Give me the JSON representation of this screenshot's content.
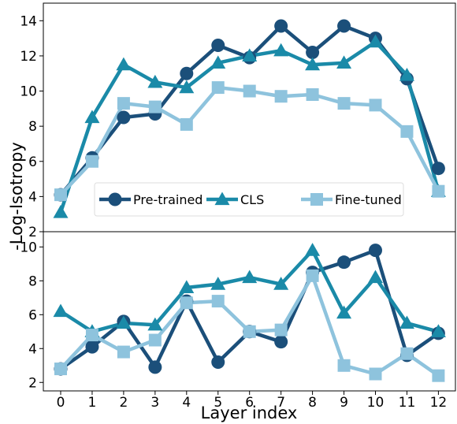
{
  "chart_data": [
    {
      "type": "line",
      "panel": "top",
      "x": [
        0,
        1,
        2,
        3,
        4,
        5,
        6,
        7,
        8,
        9,
        10,
        11,
        12
      ],
      "ylim": [
        2,
        15
      ],
      "yticks": [
        "2",
        "4",
        "6",
        "8",
        "10",
        "12",
        "14"
      ],
      "grid": false,
      "legend": "center",
      "series": [
        {
          "name": "Pre-trained",
          "color": "#1b4f7a",
          "marker": "circle",
          "values": [
            4.1,
            6.2,
            8.5,
            8.7,
            11.0,
            12.6,
            11.9,
            13.7,
            12.2,
            13.7,
            13.0,
            10.7,
            5.6
          ]
        },
        {
          "name": "CLS",
          "color": "#1a8aa8",
          "marker": "triangle",
          "values": [
            3.1,
            8.5,
            11.5,
            10.5,
            10.2,
            11.6,
            12.0,
            12.3,
            11.5,
            11.6,
            12.8,
            10.9,
            4.3
          ]
        },
        {
          "name": "Fine-tuned",
          "color": "#8ec3dd",
          "marker": "square",
          "values": [
            4.1,
            6.0,
            9.3,
            9.1,
            8.1,
            10.2,
            10.0,
            9.7,
            9.8,
            9.3,
            9.2,
            7.7,
            4.3
          ]
        }
      ]
    },
    {
      "type": "line",
      "panel": "bottom",
      "x": [
        0,
        1,
        2,
        3,
        4,
        5,
        6,
        7,
        8,
        9,
        10,
        11,
        12
      ],
      "ylim": [
        1.5,
        10.9
      ],
      "yticks": [
        "2",
        "4",
        "6",
        "8",
        "10"
      ],
      "grid": false,
      "series": [
        {
          "name": "Pre-trained",
          "color": "#1b4f7a",
          "marker": "circle",
          "values": [
            2.8,
            4.1,
            5.6,
            2.9,
            6.8,
            3.2,
            5.0,
            4.4,
            8.5,
            9.1,
            9.8,
            3.6,
            4.9
          ]
        },
        {
          "name": "CLS",
          "color": "#1a8aa8",
          "marker": "triangle",
          "values": [
            6.2,
            5.0,
            5.5,
            5.4,
            7.6,
            7.8,
            8.2,
            7.8,
            9.8,
            6.1,
            8.2,
            5.5,
            5.0
          ]
        },
        {
          "name": "Fine-tuned",
          "color": "#8ec3dd",
          "marker": "square",
          "values": [
            2.8,
            4.8,
            3.8,
            4.5,
            6.7,
            6.8,
            5.0,
            5.1,
            8.3,
            3.0,
            2.5,
            3.7,
            2.4
          ]
        }
      ]
    }
  ],
  "axes": {
    "xlabel": "Layer index",
    "ylabel": "-Log-Isotropy",
    "xticks": [
      "0",
      "1",
      "2",
      "3",
      "4",
      "5",
      "6",
      "7",
      "8",
      "9",
      "10",
      "11",
      "12"
    ]
  }
}
